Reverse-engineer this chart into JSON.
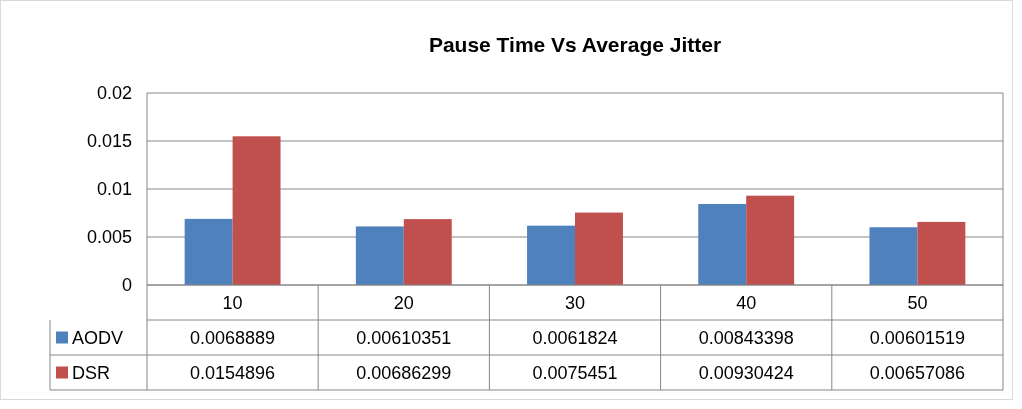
{
  "chart_data": {
    "type": "bar",
    "title": "Pause Time Vs Average Jitter",
    "categories": [
      "10",
      "20",
      "30",
      "40",
      "50"
    ],
    "series": [
      {
        "name": "AODV",
        "color": "#4f81bd",
        "values": [
          0.0068889,
          0.00610351,
          0.0061824,
          0.00843398,
          0.00601519
        ]
      },
      {
        "name": "DSR",
        "color": "#c0504d",
        "values": [
          0.0154896,
          0.00686299,
          0.0075451,
          0.00930424,
          0.00657086
        ]
      }
    ],
    "ylim": [
      0,
      0.02
    ],
    "yticks": [
      0,
      0.005,
      0.01,
      0.015,
      0.02
    ],
    "grid": "y",
    "legend": "bottom",
    "data_labels": true
  }
}
